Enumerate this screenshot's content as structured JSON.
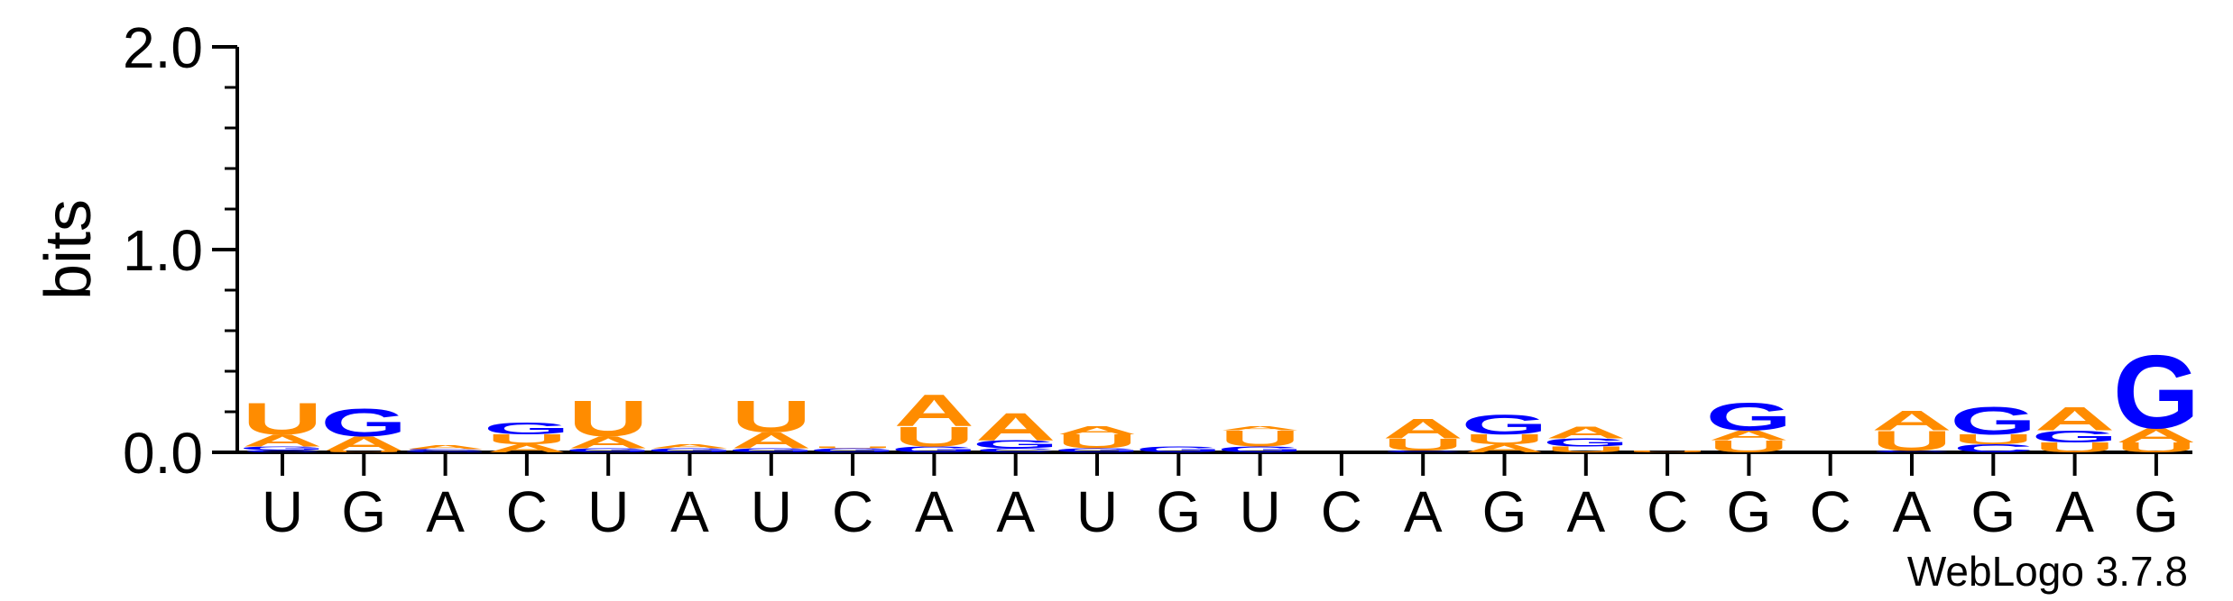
{
  "chart_data": {
    "type": "sequence_logo",
    "title": "",
    "ylabel": "bits",
    "xlabel": "",
    "ylim": [
      0,
      2
    ],
    "yticks": [
      {
        "value": 0,
        "label": "0.0"
      },
      {
        "value": 1,
        "label": "1.0"
      },
      {
        "value": 2,
        "label": "2.0"
      }
    ],
    "colors": {
      "A": "#ff8c00",
      "U": "#ff8c00",
      "G": "#0000ff",
      "C": "#0000ff"
    },
    "footer": "WebLogo 3.7.8",
    "positions": [
      {
        "label": "U",
        "stack": [
          {
            "l": "C",
            "h": 0.012
          },
          {
            "l": "G",
            "h": 0.016
          },
          {
            "l": "A",
            "h": 0.06
          },
          {
            "l": "U",
            "h": 0.16
          }
        ]
      },
      {
        "label": "G",
        "stack": [
          {
            "l": "U",
            "h": 0.01
          },
          {
            "l": "A",
            "h": 0.07
          },
          {
            "l": "G",
            "h": 0.14
          }
        ]
      },
      {
        "label": "A",
        "stack": [
          {
            "l": "G",
            "h": 0.008
          },
          {
            "l": "C",
            "h": 0.008
          },
          {
            "l": "A",
            "h": 0.02
          }
        ]
      },
      {
        "label": "C",
        "stack": [
          {
            "l": "A",
            "h": 0.04
          },
          {
            "l": "U",
            "h": 0.05
          },
          {
            "l": "G",
            "h": 0.06
          }
        ]
      },
      {
        "label": "U",
        "stack": [
          {
            "l": "G",
            "h": 0.02
          },
          {
            "l": "A",
            "h": 0.06
          },
          {
            "l": "U",
            "h": 0.18
          }
        ]
      },
      {
        "label": "A",
        "stack": [
          {
            "l": "G",
            "h": 0.02
          },
          {
            "l": "A",
            "h": 0.02
          }
        ]
      },
      {
        "label": "U",
        "stack": [
          {
            "l": "G",
            "h": 0.02
          },
          {
            "l": "A",
            "h": 0.08
          },
          {
            "l": "U",
            "h": 0.16
          }
        ]
      },
      {
        "label": "C",
        "stack": [
          {
            "l": "G",
            "h": 0.02
          },
          {
            "l": "U",
            "h": 0.01
          }
        ]
      },
      {
        "label": "A",
        "stack": [
          {
            "l": "G",
            "h": 0.03
          },
          {
            "l": "U",
            "h": 0.1
          },
          {
            "l": "A",
            "h": 0.16
          }
        ]
      },
      {
        "label": "A",
        "stack": [
          {
            "l": "C",
            "h": 0.02
          },
          {
            "l": "G",
            "h": 0.04
          },
          {
            "l": "A",
            "h": 0.14
          }
        ]
      },
      {
        "label": "U",
        "stack": [
          {
            "l": "G",
            "h": 0.02
          },
          {
            "l": "U",
            "h": 0.07
          },
          {
            "l": "A",
            "h": 0.04
          }
        ]
      },
      {
        "label": "G",
        "stack": [
          {
            "l": "G",
            "h": 0.03
          }
        ]
      },
      {
        "label": "U",
        "stack": [
          {
            "l": "G",
            "h": 0.03
          },
          {
            "l": "U",
            "h": 0.08
          },
          {
            "l": "A",
            "h": 0.02
          }
        ]
      },
      {
        "label": "C",
        "stack": []
      },
      {
        "label": "A",
        "stack": [
          {
            "l": "C",
            "h": 0.01
          },
          {
            "l": "U",
            "h": 0.06
          },
          {
            "l": "A",
            "h": 0.1
          }
        ]
      },
      {
        "label": "G",
        "stack": [
          {
            "l": "A",
            "h": 0.04
          },
          {
            "l": "U",
            "h": 0.05
          },
          {
            "l": "G",
            "h": 0.1
          }
        ]
      },
      {
        "label": "A",
        "stack": [
          {
            "l": "U",
            "h": 0.03
          },
          {
            "l": "G",
            "h": 0.04
          },
          {
            "l": "A",
            "h": 0.06
          }
        ]
      },
      {
        "label": "C",
        "stack": [
          {
            "l": "U",
            "h": 0.01
          }
        ]
      },
      {
        "label": "G",
        "stack": [
          {
            "l": "U",
            "h": 0.06
          },
          {
            "l": "A",
            "h": 0.05
          },
          {
            "l": "G",
            "h": 0.14
          }
        ]
      },
      {
        "label": "C",
        "stack": []
      },
      {
        "label": "A",
        "stack": [
          {
            "l": "C",
            "h": 0.01
          },
          {
            "l": "U",
            "h": 0.1
          },
          {
            "l": "A",
            "h": 0.1
          }
        ]
      },
      {
        "label": "G",
        "stack": [
          {
            "l": "C",
            "h": 0.04
          },
          {
            "l": "U",
            "h": 0.05
          },
          {
            "l": "G",
            "h": 0.14
          }
        ]
      },
      {
        "label": "A",
        "stack": [
          {
            "l": "U",
            "h": 0.05
          },
          {
            "l": "G",
            "h": 0.06
          },
          {
            "l": "A",
            "h": 0.12
          }
        ]
      },
      {
        "label": "G",
        "stack": [
          {
            "l": "U",
            "h": 0.05
          },
          {
            "l": "A",
            "h": 0.07
          },
          {
            "l": "G",
            "h": 0.37
          }
        ]
      }
    ]
  }
}
